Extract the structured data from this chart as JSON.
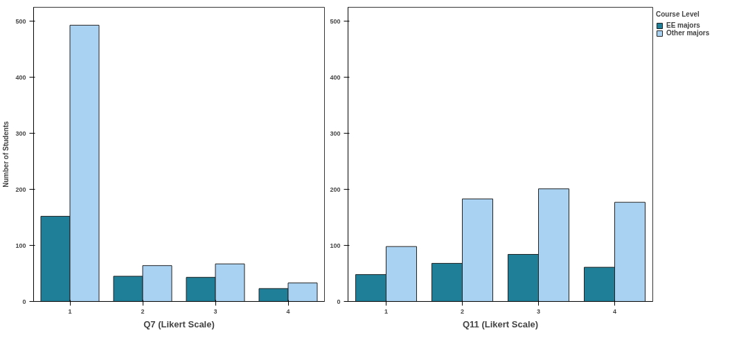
{
  "chart_data": [
    {
      "type": "bar",
      "xlabel": "Q7 (Likert Scale)",
      "ylabel": "Number of Students",
      "categories": [
        "1",
        "2",
        "3",
        "4"
      ],
      "ylim": [
        0,
        525
      ],
      "yticks": [
        0,
        100,
        200,
        300,
        400,
        500
      ],
      "grid": false,
      "legend": false,
      "series": [
        {
          "color": "#1f7f98",
          "values": [
            152,
            45,
            43,
            23
          ]
        },
        {
          "color": "#a9d1f2",
          "values": [
            493,
            64,
            67,
            33
          ]
        }
      ]
    },
    {
      "type": "bar",
      "xlabel": "Q11 (Likert Scale)",
      "legend_title": "Course Level",
      "categories": [
        "1",
        "2",
        "3",
        "4"
      ],
      "ylim": [
        0,
        525
      ],
      "yticks": [
        0,
        100,
        200,
        300,
        400,
        500
      ],
      "grid": false,
      "legend": "right",
      "series": [
        {
          "name": "EE majors",
          "color": "#1f7f98",
          "values": [
            48,
            68,
            84,
            61
          ]
        },
        {
          "name": "Other majors",
          "color": "#a9d1f2",
          "values": [
            98,
            183,
            201,
            177
          ]
        }
      ]
    }
  ]
}
